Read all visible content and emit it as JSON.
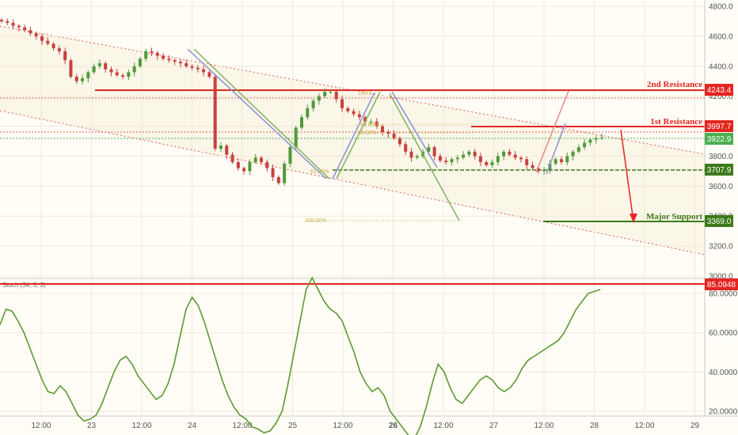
{
  "chart_data": [
    {
      "type": "candlestick",
      "y_ticks": [
        "4800.0",
        "4600.0",
        "4400.0",
        "4200.0",
        "4000.0",
        "3800.0",
        "3600.0",
        "3400.0",
        "3200.0",
        "3000.0"
      ],
      "ylim": [
        3000,
        4800
      ],
      "x_ticks": [
        "12:00",
        "23",
        "12:00",
        "24",
        "12:00",
        "25",
        "12:00",
        "26",
        "12:00",
        "27",
        "12:00",
        "28",
        "12:00",
        "29"
      ],
      "series": [
        {
          "close": [
            4700,
            4690,
            4670,
            4660,
            4640,
            4620,
            4600,
            4570,
            4550,
            4520,
            4500,
            4440,
            4330,
            4300,
            4320,
            4360,
            4400,
            4420,
            4380,
            4360,
            4340,
            4330,
            4360,
            4400,
            4450,
            4500,
            4490,
            4470,
            4450,
            4440,
            4430,
            4420,
            4400,
            4390,
            4380,
            4360,
            4330,
            3850,
            3870,
            3810,
            3760,
            3720,
            3700,
            3760,
            3790,
            3760,
            3720,
            3660,
            3620,
            3750,
            3860,
            3990,
            4060,
            4120,
            4170,
            4200,
            4230,
            4230,
            4180,
            4120,
            4100,
            4080,
            4060,
            4030,
            4030,
            4000,
            3960,
            3950,
            3920,
            3880,
            3830,
            3790,
            3800,
            3830,
            3860,
            3800,
            3770,
            3760,
            3780,
            3790,
            3810,
            3830,
            3800,
            3760,
            3740,
            3760,
            3800,
            3830,
            3810,
            3790,
            3780,
            3740,
            3720,
            3700,
            3710,
            3750,
            3780,
            3760,
            3800,
            3830,
            3860,
            3890,
            3910,
            3920,
            3925
          ]
        }
      ],
      "levels": [
        {
          "name": "2nd Resistance",
          "value": 4243.4,
          "tag": "4243.4",
          "color": "#e52520"
        },
        {
          "name": "1st Resistance",
          "value": 3997.7,
          "tag": "3997.7",
          "color": "#e52520"
        },
        {
          "name": "",
          "value": 3922.9,
          "tag": "3922.9",
          "color": "#4caf50"
        },
        {
          "name": "",
          "value": 3707.9,
          "tag": "3707.9",
          "color": "#3d7a1a"
        },
        {
          "name": "Major Support",
          "value": 3369.0,
          "tag": "3369.0",
          "color": "#3d7a1a"
        }
      ],
      "fib_labels": [
        "100.0",
        "61.80%",
        "50.00%",
        "61.80%",
        "100.00%"
      ]
    },
    {
      "type": "line",
      "title": "Stoch (34, 5, 3)",
      "y_ticks": [
        "80.0000",
        "60.0000",
        "40.0000",
        "20.0000"
      ],
      "ylim": [
        0,
        88
      ],
      "level": {
        "value": 85.0948,
        "tag": "85.0948",
        "color": "#e52520"
      },
      "series": [
        {
          "color": "#5b9a2e",
          "values": [
            64,
            72,
            71,
            66,
            60,
            52,
            44,
            36,
            30,
            29,
            33,
            30,
            24,
            18,
            15,
            16,
            18,
            24,
            32,
            40,
            46,
            48,
            44,
            38,
            34,
            30,
            26,
            28,
            34,
            44,
            58,
            72,
            78,
            74,
            66,
            56,
            46,
            36,
            28,
            22,
            18,
            16,
            12,
            11,
            9,
            10,
            14,
            20,
            34,
            50,
            66,
            82,
            88,
            82,
            76,
            72,
            70,
            66,
            58,
            50,
            40,
            34,
            30,
            32,
            28,
            20,
            16,
            12,
            8,
            6,
            12,
            22,
            34,
            44,
            40,
            32,
            26,
            24,
            28,
            32,
            36,
            38,
            36,
            32,
            30,
            32,
            36,
            42,
            46,
            48,
            50,
            52,
            54,
            56,
            60,
            66,
            72,
            76,
            80,
            81,
            82
          ]
        }
      ]
    }
  ]
}
